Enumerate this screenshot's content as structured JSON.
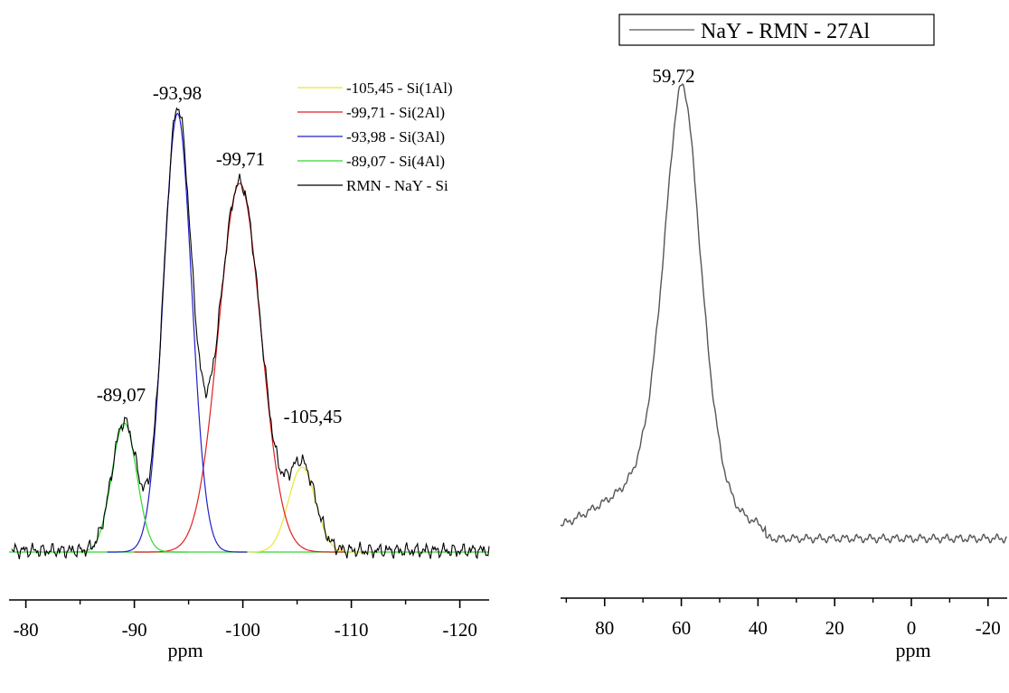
{
  "colors": {
    "component_1al": "#e8e832",
    "component_2al": "#e02020",
    "component_3al": "#2020c8",
    "component_4al": "#30d830",
    "experimental": "#000000",
    "al_spectrum": "#555555"
  },
  "chart_data": [
    {
      "type": "line",
      "title": "",
      "xlabel": "ppm",
      "ylabel": "",
      "xlim": [
        -78.7,
        -122.7
      ],
      "x_ticks": [
        -80,
        -90,
        -100,
        -110,
        -120
      ],
      "x_tick_labels": [
        "-80",
        "-90",
        "-100",
        "-110",
        "-120"
      ],
      "grid": false,
      "legend_position": "top-right",
      "series": [
        {
          "name": "-105,45 - Si(1Al)",
          "color": "#e8e832",
          "peak": {
            "center": -105.45,
            "height": 0.23,
            "sigma": 1.25
          }
        },
        {
          "name": "-99,71 - Si(2Al)",
          "color": "#e02020",
          "peak": {
            "center": -99.71,
            "height": 1.0,
            "sigma": 1.95
          }
        },
        {
          "name": "-93,98 - Si(3Al)",
          "color": "#2020c8",
          "peak": {
            "center": -93.98,
            "height": 1.19,
            "sigma": 1.3
          }
        },
        {
          "name": "-89,07 - Si(4Al)",
          "color": "#30d830",
          "peak": {
            "center": -89.07,
            "height": 0.35,
            "sigma": 1.15
          }
        },
        {
          "name": "RMN - NaY - Si",
          "color": "#000000",
          "kind": "experimental sum"
        }
      ],
      "peak_labels": [
        {
          "text": "-89,07",
          "x": -89.07
        },
        {
          "text": "-93,98",
          "x": -93.98
        },
        {
          "text": "-99,71",
          "x": -99.71
        },
        {
          "text": "-105,45",
          "x": -105.45
        }
      ]
    },
    {
      "type": "line",
      "title": "",
      "xlabel": "ppm",
      "ylabel": "",
      "xlim": [
        91.5,
        -25
      ],
      "x_ticks": [
        80,
        60,
        40,
        20,
        0,
        -20
      ],
      "x_tick_labels": [
        "80",
        "60",
        "40",
        "20",
        "0",
        "-20"
      ],
      "grid": false,
      "legend_position": "top-right",
      "series": [
        {
          "name": "NaY - RMN - 27Al",
          "color": "#555555",
          "peak": {
            "center": 59.72,
            "height": 1.0
          }
        }
      ],
      "peak_labels": [
        {
          "text": "59,72",
          "x": 59.72
        }
      ]
    }
  ]
}
